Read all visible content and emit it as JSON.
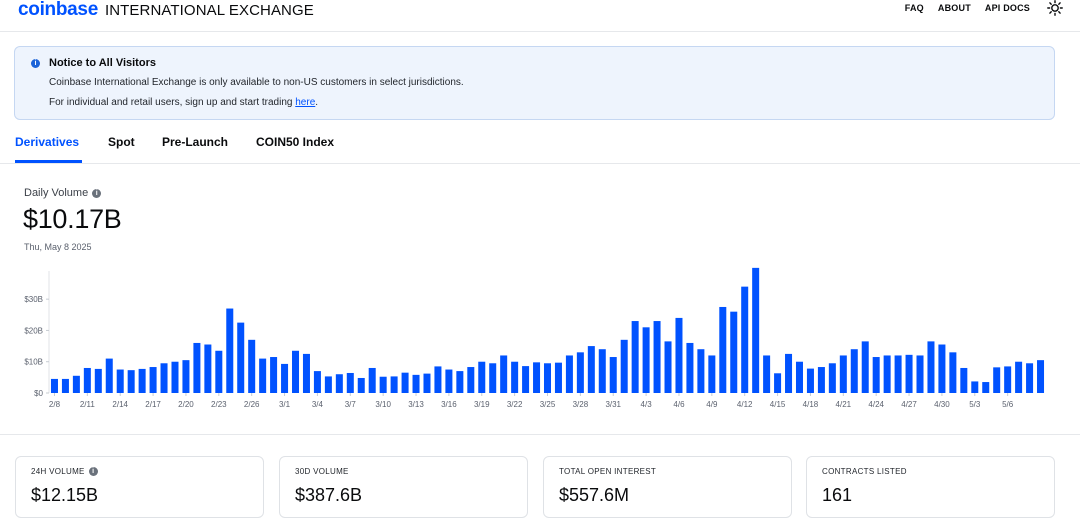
{
  "brand": {
    "logo": "coinbase",
    "suffix": "INTERNATIONAL EXCHANGE"
  },
  "nav": {
    "faq": "FAQ",
    "about": "ABOUT",
    "api_docs": "API DOCS",
    "theme_icon": "sun-icon"
  },
  "notice": {
    "title": "Notice to All Visitors",
    "line1": "Coinbase International Exchange is only available to non-US customers in select jurisdictions.",
    "line2_prefix": "For individual and retail users, sign up and start trading ",
    "line2_link": "here",
    "line2_suffix": "."
  },
  "tabs": [
    {
      "label": "Derivatives",
      "active": true
    },
    {
      "label": "Spot",
      "active": false
    },
    {
      "label": "Pre-Launch",
      "active": false
    },
    {
      "label": "COIN50 Index",
      "active": false
    }
  ],
  "daily_volume": {
    "label": "Daily Volume",
    "value": "$10.17B",
    "date": "Thu, May 8 2025"
  },
  "chart_data": {
    "type": "bar",
    "title": "Daily Volume",
    "xlabel": "",
    "ylabel": "",
    "ylim": [
      0,
      39
    ],
    "y_ticks": [
      0,
      10,
      20,
      30
    ],
    "y_tick_labels": [
      "$0",
      "$10B",
      "$20B",
      "$30B"
    ],
    "x_tick_labels": [
      "2/8",
      "2/11",
      "2/14",
      "2/17",
      "2/20",
      "2/23",
      "2/26",
      "3/1",
      "3/4",
      "3/7",
      "3/10",
      "3/13",
      "3/16",
      "3/19",
      "3/22",
      "3/25",
      "3/28",
      "3/31",
      "4/3",
      "4/6",
      "4/9",
      "4/12",
      "4/15",
      "4/18",
      "4/21",
      "4/24",
      "4/27",
      "4/30",
      "5/3",
      "5/6"
    ],
    "x_tick_every": 3,
    "series": [
      {
        "name": "Daily Volume ($B)",
        "color": "#0052ff",
        "values": [
          4.5,
          4.5,
          5.5,
          8,
          7.7,
          11,
          7.5,
          7.3,
          7.7,
          8.3,
          9.5,
          10,
          10.5,
          16,
          15.5,
          13.5,
          27,
          22.5,
          17,
          11,
          11.5,
          9.3,
          13.5,
          12.5,
          7,
          5.3,
          6,
          6.4,
          4.8,
          8,
          5.2,
          5.3,
          6.5,
          5.8,
          6.2,
          8.5,
          7.5,
          7,
          8.3,
          10,
          9.5,
          12,
          10,
          8.6,
          9.8,
          9.5,
          9.7,
          12,
          13,
          15,
          14,
          11.5,
          17,
          23,
          21,
          23,
          16.5,
          24,
          16,
          14,
          12,
          27.5,
          26,
          34,
          40,
          12,
          6.3,
          12.5,
          10,
          7.8,
          8.3,
          9.5,
          12,
          14,
          16.5,
          11.5,
          12,
          12,
          12.2,
          12,
          16.5,
          15.5,
          13,
          8,
          3.7,
          3.5,
          8.2,
          8.5,
          10,
          9.5,
          10.5
        ]
      }
    ]
  },
  "stats": [
    {
      "label": "24H VOLUME",
      "value": "$12.15B",
      "info": true
    },
    {
      "label": "30D VOLUME",
      "value": "$387.6B",
      "info": false
    },
    {
      "label": "TOTAL OPEN INTEREST",
      "value": "$557.6M",
      "info": false
    },
    {
      "label": "CONTRACTS LISTED",
      "value": "161",
      "info": false
    }
  ]
}
